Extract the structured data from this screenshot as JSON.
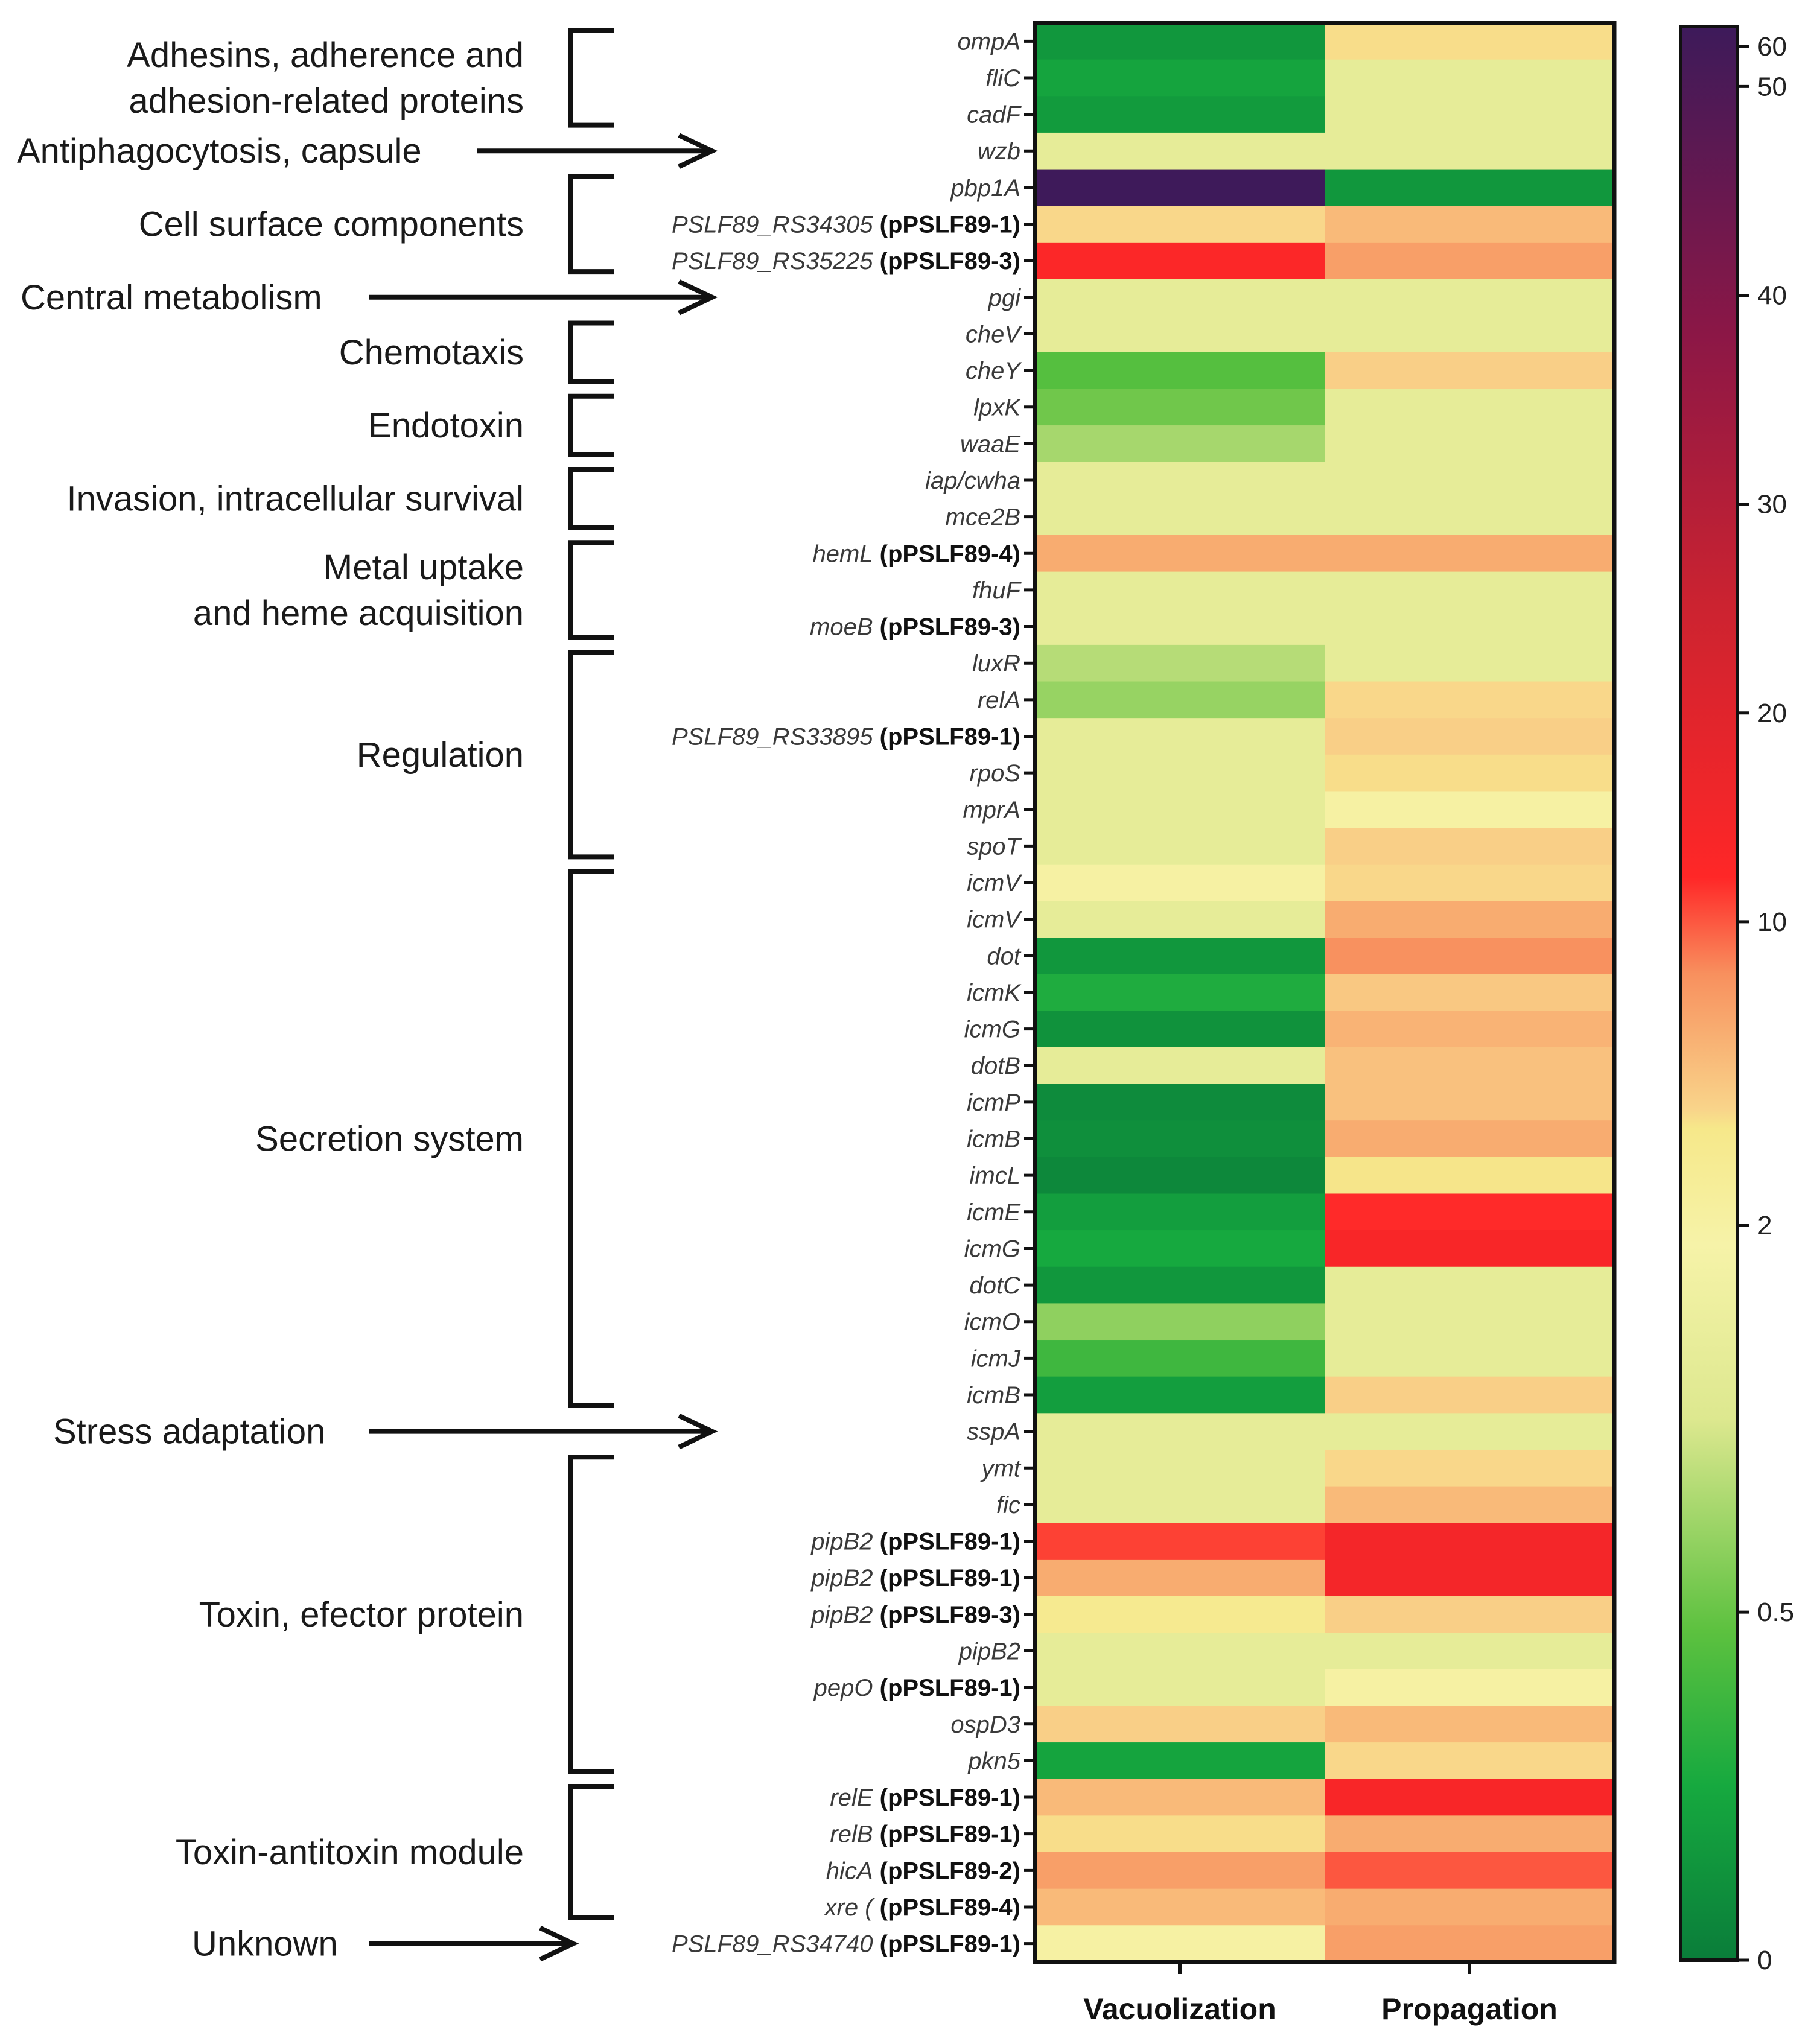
{
  "chart_data": {
    "type": "heatmap",
    "columns": [
      "Vacuolization",
      "Propagation"
    ],
    "colorbar": {
      "ticks": [
        "0",
        "0.5",
        "2",
        "10",
        "20",
        "30",
        "40",
        "50",
        "60"
      ],
      "range": [
        0,
        65
      ]
    },
    "rows": [
      {
        "gene": "ompA",
        "plasmid": "",
        "values": [
          0.15,
          2.8
        ]
      },
      {
        "gene": "fliC",
        "plasmid": "",
        "values": [
          0.22,
          1.5
        ]
      },
      {
        "gene": "cadF",
        "plasmid": "",
        "values": [
          0.17,
          1.5
        ]
      },
      {
        "gene": "wzb",
        "plasmid": "",
        "values": [
          1.5,
          1.5
        ]
      },
      {
        "gene": "pbp1A",
        "plasmid": "",
        "values": [
          64,
          0.15
        ]
      },
      {
        "gene": "PSLF89_RS34305",
        "plasmid": "(pPSLF89-1)",
        "values": [
          3,
          5
        ]
      },
      {
        "gene": "PSLF89_RS35225",
        "plasmid": "(pPSLF89-3)",
        "values": [
          13,
          7
        ]
      },
      {
        "gene": "pgi",
        "plasmid": "",
        "values": [
          1.5,
          1.5
        ]
      },
      {
        "gene": "cheV",
        "plasmid": "",
        "values": [
          1.5,
          1.5
        ]
      },
      {
        "gene": "cheY",
        "plasmid": "",
        "values": [
          0.45,
          3.5
        ]
      },
      {
        "gene": "lpxK",
        "plasmid": "",
        "values": [
          0.55,
          1.5
        ]
      },
      {
        "gene": "waaE",
        "plasmid": "",
        "values": [
          0.9,
          1.5
        ]
      },
      {
        "gene": "iap/cwha",
        "plasmid": "",
        "values": [
          1.5,
          1.5
        ]
      },
      {
        "gene": "mce2B",
        "plasmid": "",
        "values": [
          1.5,
          1.5
        ]
      },
      {
        "gene": "hemL",
        "plasmid": "(pPSLF89-4)",
        "values": [
          6,
          6
        ]
      },
      {
        "gene": "fhuF",
        "plasmid": "",
        "values": [
          1.5,
          1.5
        ]
      },
      {
        "gene": "moeB",
        "plasmid": "(pPSLF89-3)",
        "values": [
          1.5,
          1.5
        ]
      },
      {
        "gene": "luxR",
        "plasmid": "",
        "values": [
          1.0,
          1.5
        ]
      },
      {
        "gene": "relA",
        "plasmid": "",
        "values": [
          0.8,
          3
        ]
      },
      {
        "gene": "PSLF89_RS33895",
        "plasmid": "(pPSLF89-1)",
        "values": [
          1.5,
          3.5
        ]
      },
      {
        "gene": "rpoS",
        "plasmid": "",
        "values": [
          1.5,
          2.8
        ]
      },
      {
        "gene": "mprA",
        "plasmid": "",
        "values": [
          1.5,
          2
        ]
      },
      {
        "gene": "spoT",
        "plasmid": "",
        "values": [
          1.5,
          3.5
        ]
      },
      {
        "gene": "icmV",
        "plasmid": "",
        "values": [
          2,
          3
        ]
      },
      {
        "gene": "icmV",
        "plasmid": "",
        "values": [
          1.5,
          6
        ]
      },
      {
        "gene": "dot",
        "plasmid": "",
        "values": [
          0.15,
          8
        ]
      },
      {
        "gene": "icmK",
        "plasmid": "",
        "values": [
          0.28,
          4
        ]
      },
      {
        "gene": "icmG",
        "plasmid": "",
        "values": [
          0.12,
          5.5
        ]
      },
      {
        "gene": "dotB",
        "plasmid": "",
        "values": [
          1.5,
          4.5
        ]
      },
      {
        "gene": "icmP",
        "plasmid": "",
        "values": [
          0.08,
          4.5
        ]
      },
      {
        "gene": "icmB",
        "plasmid": "",
        "values": [
          0.1,
          6
        ]
      },
      {
        "gene": "imcL",
        "plasmid": "",
        "values": [
          0.06,
          2.5
        ]
      },
      {
        "gene": "icmE",
        "plasmid": "",
        "values": [
          0.19,
          12
        ]
      },
      {
        "gene": "icmG",
        "plasmid": "",
        "values": [
          0.25,
          14
        ]
      },
      {
        "gene": "dotC",
        "plasmid": "",
        "values": [
          0.15,
          1.5
        ]
      },
      {
        "gene": "icmO",
        "plasmid": "",
        "values": [
          0.75,
          1.5
        ]
      },
      {
        "gene": "icmJ",
        "plasmid": "",
        "values": [
          0.38,
          1.5
        ]
      },
      {
        "gene": "icmB",
        "plasmid": "",
        "values": [
          0.19,
          3.5
        ]
      },
      {
        "gene": "sspA",
        "plasmid": "",
        "values": [
          1.5,
          1.5
        ]
      },
      {
        "gene": "ymt",
        "plasmid": "",
        "values": [
          1.5,
          3
        ]
      },
      {
        "gene": "fic",
        "plasmid": "",
        "values": [
          1.5,
          5
        ]
      },
      {
        "gene": "pipB2",
        "plasmid": "(pPSLF89-1)",
        "values": [
          11,
          15
        ]
      },
      {
        "gene": "pipB2",
        "plasmid": "(pPSLF89-1)",
        "values": [
          6,
          15
        ]
      },
      {
        "gene": "pipB2",
        "plasmid": "(pPSLF89-3)",
        "values": [
          2.3,
          3.5
        ]
      },
      {
        "gene": "pipB2",
        "plasmid": "",
        "values": [
          1.5,
          1.5
        ]
      },
      {
        "gene": "pepO",
        "plasmid": "(pPSLF89-1)",
        "values": [
          1.5,
          2
        ]
      },
      {
        "gene": "ospD3",
        "plasmid": "",
        "values": [
          3.5,
          5
        ]
      },
      {
        "gene": "pkn5",
        "plasmid": "",
        "values": [
          0.22,
          3
        ]
      },
      {
        "gene": "relE",
        "plasmid": "(pPSLF89-1)",
        "values": [
          5,
          14
        ]
      },
      {
        "gene": "relB",
        "plasmid": "(pPSLF89-1)",
        "values": [
          2.8,
          6
        ]
      },
      {
        "gene": "hicA",
        "plasmid": "(pPSLF89-2)",
        "values": [
          7,
          10
        ]
      },
      {
        "gene": "xre (",
        "plasmid": "(pPSLF89-4)",
        "values": [
          5,
          6
        ]
      },
      {
        "gene": "PSLF89_RS34740",
        "plasmid": "(pPSLF89-1)",
        "values": [
          2,
          7
        ]
      }
    ],
    "categories": [
      {
        "lines": [
          "Adhesins, adherence and",
          "adhesion-related proteins"
        ],
        "rows": [
          0,
          2
        ],
        "marker": "bracket"
      },
      {
        "lines": [
          "Antiphagocytosis, capsule"
        ],
        "rows": [
          3,
          3
        ],
        "marker": "arrow"
      },
      {
        "lines": [
          "Cell surface components"
        ],
        "rows": [
          4,
          6
        ],
        "marker": "bracket"
      },
      {
        "lines": [
          "Central metabolism"
        ],
        "rows": [
          7,
          7
        ],
        "marker": "arrow"
      },
      {
        "lines": [
          "Chemotaxis"
        ],
        "rows": [
          8,
          9
        ],
        "marker": "bracket"
      },
      {
        "lines": [
          "Endotoxin"
        ],
        "rows": [
          10,
          11
        ],
        "marker": "bracket"
      },
      {
        "lines": [
          "Invasion, intracellular survival"
        ],
        "rows": [
          12,
          13
        ],
        "marker": "bracket"
      },
      {
        "lines": [
          "Metal uptake",
          "and heme acquisition"
        ],
        "rows": [
          14,
          16
        ],
        "marker": "bracket"
      },
      {
        "lines": [
          "Regulation"
        ],
        "rows": [
          17,
          22
        ],
        "marker": "bracket"
      },
      {
        "lines": [
          "Secretion system"
        ],
        "rows": [
          23,
          37
        ],
        "marker": "bracket"
      },
      {
        "lines": [
          "Stress adaptation"
        ],
        "rows": [
          38,
          38
        ],
        "marker": "arrow"
      },
      {
        "lines": [
          "Toxin, efector protein"
        ],
        "rows": [
          39,
          47
        ],
        "marker": "bracket"
      },
      {
        "lines": [
          "Toxin-antitoxin module"
        ],
        "rows": [
          48,
          51
        ],
        "marker": "bracket"
      },
      {
        "lines": [
          "Unknown"
        ],
        "rows": [
          52,
          52
        ],
        "marker": "arrow"
      }
    ]
  }
}
